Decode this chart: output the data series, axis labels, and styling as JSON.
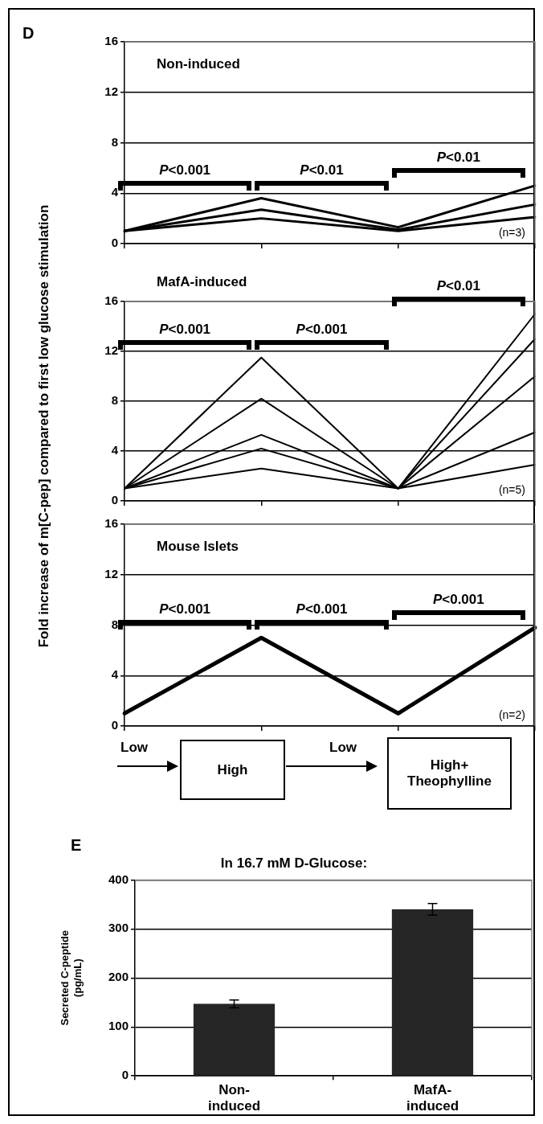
{
  "chart_data": [
    {
      "type": "line",
      "title": "Non-induced",
      "categories": [
        null,
        null,
        null,
        null
      ],
      "series": [
        {
          "color": "#000000",
          "values": [
            1,
            3.6,
            1.3,
            4.6
          ]
        },
        {
          "color": "#000000",
          "values": [
            1,
            2.7,
            1.1,
            3.1
          ]
        },
        {
          "color": "#000000",
          "values": [
            1,
            2,
            1,
            2.1
          ]
        }
      ],
      "ylim": [
        0,
        16
      ],
      "yticks": [
        0,
        4,
        8,
        12,
        16
      ],
      "grid": "y",
      "legend": false,
      "marker": "none",
      "line_style": "solid",
      "tick_labels": "y",
      "annotations": [
        "D",
        "P<0.001",
        "P<0.01",
        "P<0.01",
        "(n=3)"
      ]
    },
    {
      "type": "line",
      "title": "MafA-induced",
      "ylabel": "Fold increase of m[C-pep] compared to first low glucose stimulation",
      "categories": [
        null,
        null,
        null,
        null
      ],
      "series": [
        {
          "color": "#000000",
          "values": [
            1,
            11.5,
            1,
            15
          ]
        },
        {
          "color": "#000000",
          "values": [
            1,
            8.2,
            1,
            13
          ]
        },
        {
          "color": "#000000",
          "values": [
            1,
            5.3,
            1,
            10
          ]
        },
        {
          "color": "#000000",
          "values": [
            1,
            4.2,
            1,
            5.5
          ]
        },
        {
          "color": "#000000",
          "values": [
            1,
            2.6,
            1,
            2.9
          ]
        }
      ],
      "ylim": [
        0,
        16
      ],
      "yticks": [
        0,
        4,
        8,
        12,
        16
      ],
      "grid": "y",
      "legend": false,
      "marker": "none",
      "line_style": "solid",
      "tick_labels": "y",
      "annotations": [
        "P<0.001",
        "P<0.001",
        "P<0.01",
        "(n=5)"
      ]
    },
    {
      "type": "line",
      "title": "Mouse Islets",
      "categories": [
        null,
        null,
        null,
        null
      ],
      "series": [
        {
          "color": "#000000",
          "values": [
            1,
            7,
            1,
            7.8
          ]
        }
      ],
      "ylim": [
        0,
        16
      ],
      "yticks": [
        0,
        4,
        8,
        12,
        16
      ],
      "grid": "y",
      "legend": false,
      "marker": "none",
      "line_style": "solid",
      "tick_labels": "y",
      "annotations": [
        "P<0.001",
        "P<0.001",
        "P<0.001",
        "(n=2)",
        "Low",
        "High",
        "Low",
        "High+ Theophylline"
      ]
    },
    {
      "type": "bar",
      "title": "In 16.7 mM D-Glucose:",
      "ylabel": "Secreted C-peptide (pg/mL)",
      "categories": [
        "Non-induced",
        "MafA-induced"
      ],
      "values": [
        147,
        340
      ],
      "errors": [
        8,
        12
      ],
      "color": "#262626",
      "ylim": [
        0,
        400
      ],
      "yticks": [
        0,
        100,
        200,
        300,
        400
      ],
      "grid": "y",
      "legend": false,
      "annotations": [
        "E"
      ]
    }
  ]
}
